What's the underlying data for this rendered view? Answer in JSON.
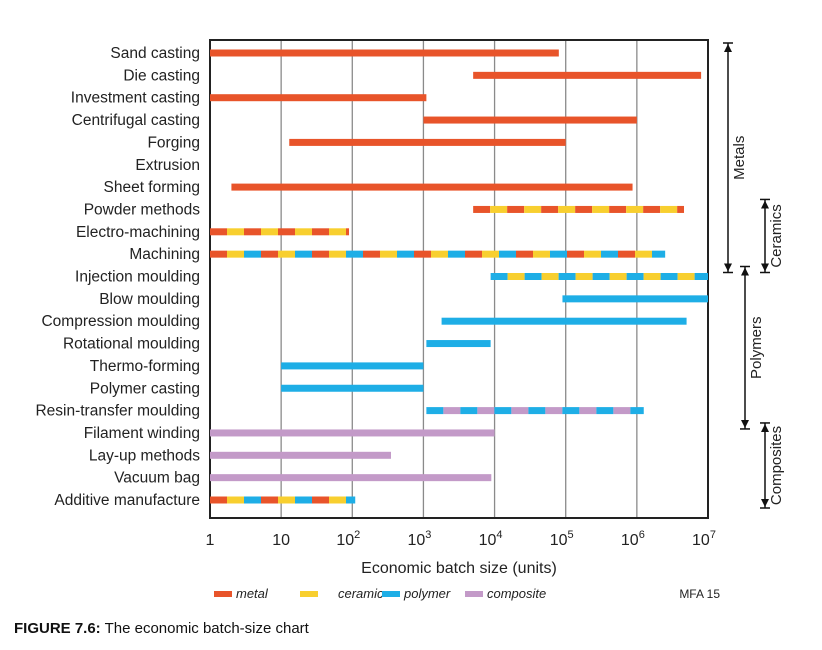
{
  "chart_data": {
    "type": "bar",
    "subtype": "horizontal-range",
    "xlabel": "Economic batch size (units)",
    "xscale": "log",
    "xlim": [
      1,
      10000000
    ],
    "xticks": [
      {
        "value": 1,
        "base": "1",
        "exp": ""
      },
      {
        "value": 10,
        "base": "10",
        "exp": ""
      },
      {
        "value": 100,
        "base": "10",
        "exp": "2"
      },
      {
        "value": 1000,
        "base": "10",
        "exp": "3"
      },
      {
        "value": 10000,
        "base": "10",
        "exp": "4"
      },
      {
        "value": 100000,
        "base": "10",
        "exp": "5"
      },
      {
        "value": 1000000,
        "base": "10",
        "exp": "6"
      },
      {
        "value": 10000000,
        "base": "10",
        "exp": "7"
      }
    ],
    "grid": "vertical",
    "colors": {
      "metal": "#e8542a",
      "ceramic": "#f8cf2f",
      "polymer": "#1eaee6",
      "composite": "#c39ac8"
    },
    "legend": {
      "placement": "bottom",
      "entries": [
        {
          "key": "metal",
          "label": "metal"
        },
        {
          "key": "ceramic",
          "label": "ceramic"
        },
        {
          "key": "polymer",
          "label": "polymer"
        },
        {
          "key": "composite",
          "label": "composite"
        }
      ]
    },
    "source_label": "MFA 15",
    "processes": [
      {
        "name": "Sand casting",
        "min": 1,
        "max": 80000,
        "materials": [
          "metal"
        ]
      },
      {
        "name": "Die casting",
        "min": 5000,
        "max": 8000000,
        "materials": [
          "metal"
        ]
      },
      {
        "name": "Investment casting",
        "min": 1,
        "max": 1100,
        "materials": [
          "metal"
        ]
      },
      {
        "name": "Centrifugal casting",
        "min": 1000,
        "max": 1000000,
        "materials": [
          "metal"
        ]
      },
      {
        "name": "Forging",
        "min": 13,
        "max": 100000,
        "materials": [
          "metal"
        ]
      },
      {
        "name": "Extrusion",
        "min": null,
        "max": null,
        "materials": []
      },
      {
        "name": "Sheet forming",
        "min": 2,
        "max": 870000,
        "materials": [
          "metal"
        ]
      },
      {
        "name": "Powder methods",
        "min": 5000,
        "max": 4600000,
        "materials": [
          "metal",
          "ceramic"
        ]
      },
      {
        "name": "Electro-machining",
        "min": 1,
        "max": 90,
        "materials": [
          "metal",
          "ceramic"
        ]
      },
      {
        "name": "Machining",
        "min": 1,
        "max": 2500000,
        "materials": [
          "metal",
          "ceramic",
          "polymer"
        ]
      },
      {
        "name": "Injection moulding",
        "min": 8800,
        "max": 10000000,
        "materials": [
          "polymer",
          "ceramic"
        ]
      },
      {
        "name": "Blow moulding",
        "min": 90000,
        "max": 10000000,
        "materials": [
          "polymer"
        ]
      },
      {
        "name": "Compression moulding",
        "min": 1800,
        "max": 5000000,
        "materials": [
          "polymer"
        ]
      },
      {
        "name": "Rotational moulding",
        "min": 1100,
        "max": 8800,
        "materials": [
          "polymer"
        ]
      },
      {
        "name": "Thermo-forming",
        "min": 10,
        "max": 1000,
        "materials": [
          "polymer"
        ]
      },
      {
        "name": "Polymer casting",
        "min": 10,
        "max": 1000,
        "materials": [
          "polymer"
        ]
      },
      {
        "name": "Resin-transfer moulding",
        "min": 1100,
        "max": 1250000,
        "materials": [
          "polymer",
          "composite"
        ]
      },
      {
        "name": "Filament winding",
        "min": 1,
        "max": 10000,
        "materials": [
          "composite"
        ]
      },
      {
        "name": "Lay-up methods",
        "min": 1,
        "max": 350,
        "materials": [
          "composite"
        ]
      },
      {
        "name": "Vacuum bag",
        "min": 1,
        "max": 9000,
        "materials": [
          "composite"
        ]
      },
      {
        "name": "Additive manufacture",
        "min": 1,
        "max": 110,
        "materials": [
          "metal",
          "ceramic",
          "polymer"
        ]
      }
    ],
    "groups": [
      {
        "label": "Metals",
        "from": "Sand casting",
        "to": "Injection moulding"
      },
      {
        "label": "Ceramics",
        "from": "Powder methods",
        "to": "Injection moulding"
      },
      {
        "label": "Polymers",
        "from": "Injection moulding",
        "to": "Filament winding"
      },
      {
        "label": "Composites",
        "from": "Filament winding",
        "to": "Additive manufacture"
      }
    ]
  },
  "caption": {
    "label": "FIGURE 7.6:",
    "text": " The economic batch-size chart"
  }
}
